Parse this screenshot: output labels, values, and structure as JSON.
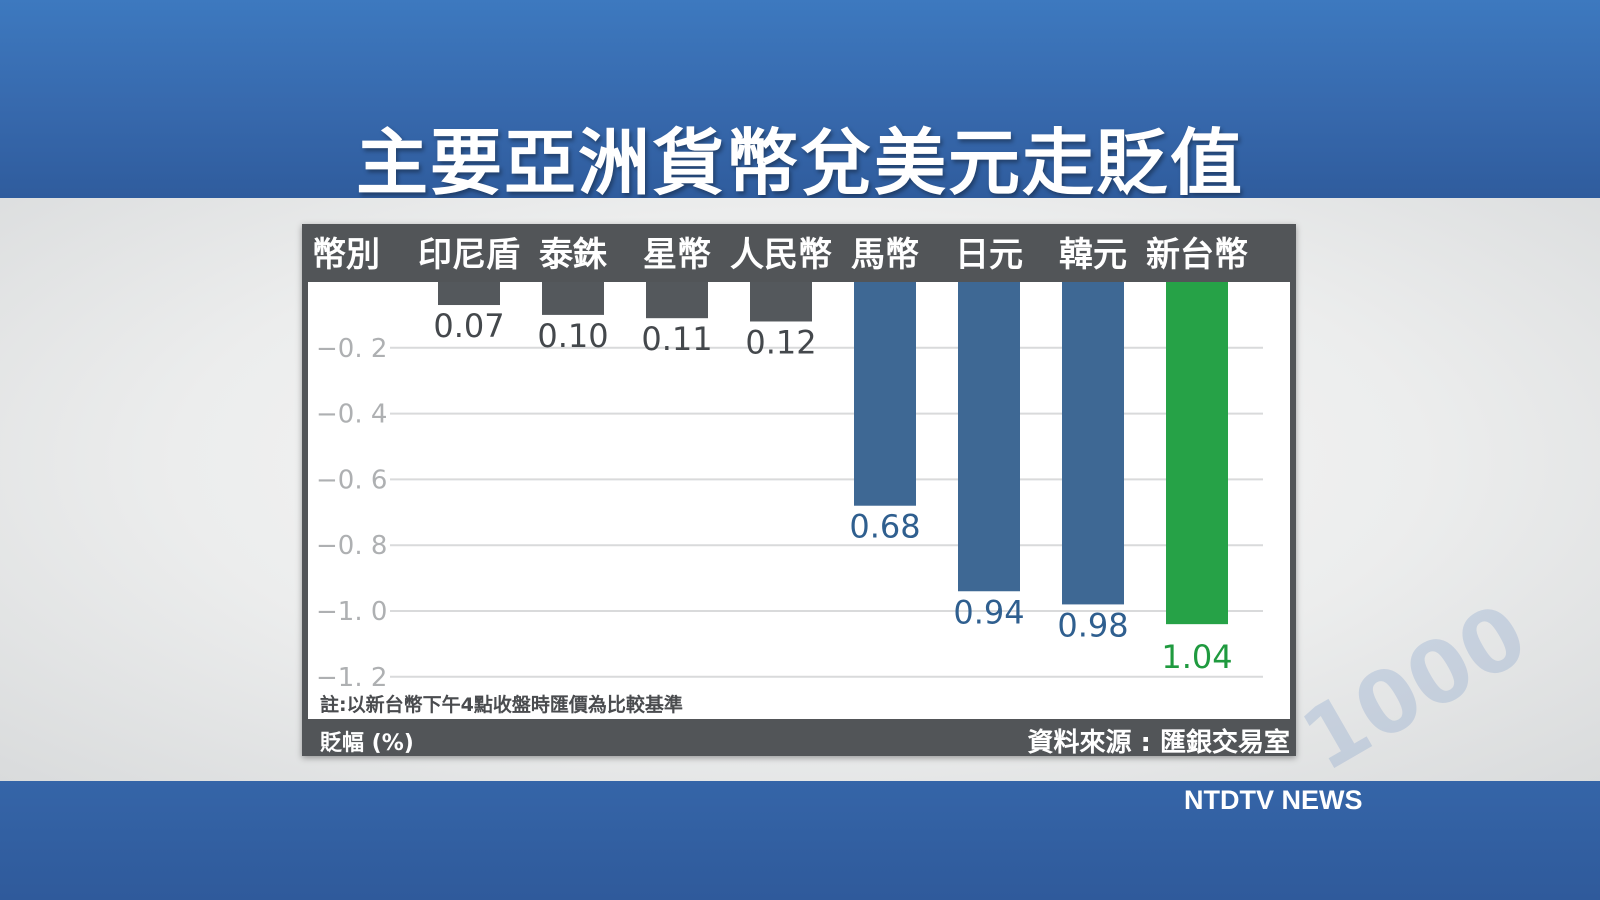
{
  "headline": "主要亞洲貨幣兌美元走貶值",
  "network": "NTDTV NEWS",
  "decor_text": "1000",
  "colors": {
    "bar_gray": "#54585c",
    "bar_blue": "#3e6894",
    "bar_green": "#26a247",
    "label_gray": "#44484c",
    "label_blue": "#2f5f8f",
    "label_green": "#1f9a3f"
  },
  "chart_data": {
    "type": "bar",
    "axis_header": "幣別",
    "unit_label": "貶幅 (%)",
    "footnote": "註:以新台幣下午4點收盤時匯價為比較基準",
    "source": "資料來源 : 匯銀交易室",
    "categories": [
      "印尼盾",
      "泰銖",
      "星幣",
      "人民幣",
      "馬幣",
      "日元",
      "韓元",
      "新台幣"
    ],
    "values": [
      -0.07,
      -0.1,
      -0.11,
      -0.12,
      -0.68,
      -0.94,
      -0.98,
      -1.04
    ],
    "value_labels": [
      "0.07",
      "0.10",
      "0.11",
      "0.12",
      "0.68",
      "0.94",
      "0.98",
      "1.04"
    ],
    "bar_colors": [
      "gray",
      "gray",
      "gray",
      "gray",
      "blue",
      "blue",
      "blue",
      "green"
    ],
    "y_ticks": [
      -0.2,
      -0.4,
      -0.6,
      -0.8,
      -1.0,
      -1.2
    ],
    "y_tick_labels": [
      "−0. 2",
      "−0. 4",
      "−0. 6",
      "−0. 8",
      "−1. 0",
      "−1. 2"
    ],
    "ylim": [
      -1.24,
      0
    ],
    "grid": true,
    "legend": "none"
  }
}
